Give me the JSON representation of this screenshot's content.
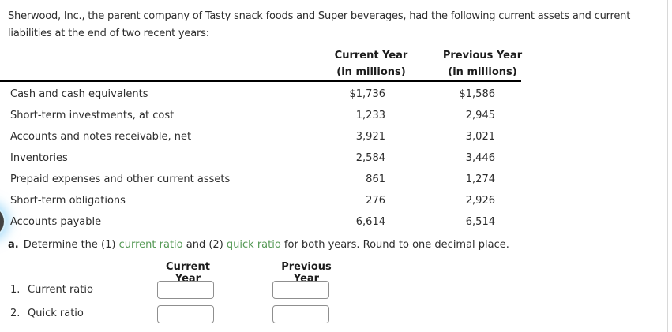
{
  "intro": {
    "text": "Sherwood, Inc., the parent company of Tasty snack foods and Super beverages, had the following current assets and current liabilities at the end of two recent years:"
  },
  "table": {
    "headers": [
      {
        "line1": "Current Year",
        "line2": "(in millions)"
      },
      {
        "line1": "Previous Year",
        "line2": "(in millions)"
      }
    ],
    "rows": [
      {
        "label": "Cash and cash equivalents",
        "current": "$1,736",
        "previous": "$1,586"
      },
      {
        "label": "Short-term investments, at cost",
        "current": "1,233",
        "previous": "2,945"
      },
      {
        "label": "Accounts and notes receivable, net",
        "current": "3,921",
        "previous": "3,021"
      },
      {
        "label": "Inventories",
        "current": "2,584",
        "previous": "3,446"
      },
      {
        "label": "Prepaid expenses and other current assets",
        "current": "861",
        "previous": "1,274"
      },
      {
        "label": "Short-term obligations",
        "current": "276",
        "previous": "2,926"
      },
      {
        "label": "Accounts payable",
        "current": "6,614",
        "previous": "6,514"
      }
    ]
  },
  "question": {
    "prefix": "a.",
    "part1": "Determine the (1) ",
    "link1": "current ratio",
    "part2": " and (2) ",
    "link2": "quick ratio",
    "part3": " for both years. Round to one decimal place."
  },
  "answers": {
    "col_headers": [
      "Current Year",
      "Previous Year"
    ],
    "rows": [
      {
        "num": "1.",
        "label": "Current ratio",
        "current_value": "",
        "previous_value": ""
      },
      {
        "num": "2.",
        "label": "Quick ratio",
        "current_value": "",
        "previous_value": ""
      }
    ]
  },
  "colors": {
    "link_green": "#559955",
    "header_rule": "#000000",
    "input_border": "#8f8f8f",
    "panel_border": "#d8d8d8",
    "text": "#2d2d2d"
  }
}
